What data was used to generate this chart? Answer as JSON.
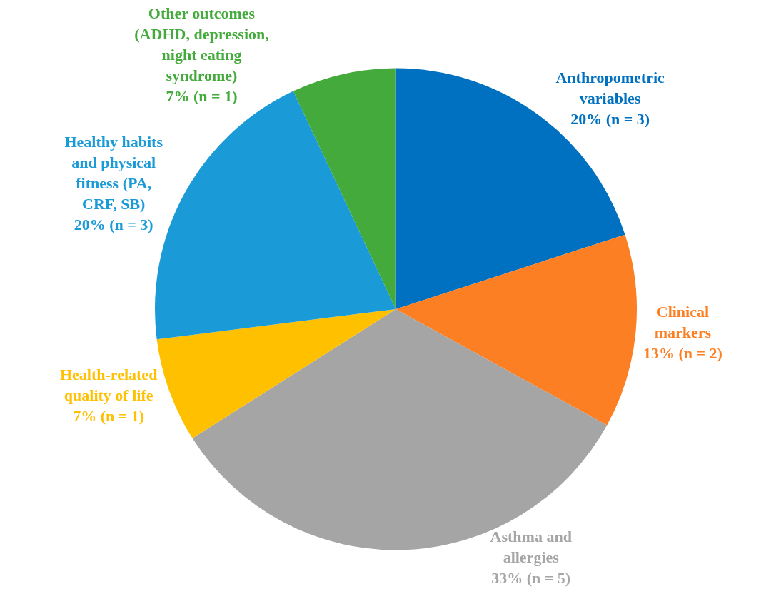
{
  "chart_data": {
    "type": "pie",
    "categories": [
      "Anthropometric\nvariables",
      "Clinical\nmarkers",
      "Asthma and\nallergies",
      "Health-related\nquality of life",
      "Healthy habits\nand physical\nfitness (PA,\nCRF, SB)",
      "Other outcomes\n(ADHD, depression,\nnight eating\nsyndrome)"
    ],
    "values": [
      20,
      13,
      33,
      7,
      20,
      7
    ],
    "value_labels": [
      "20% (n = 3)",
      "13% (n = 2)",
      "33% (n = 5)",
      "7% (n = 1)",
      "20% (n = 3)",
      "7% (n = 1)"
    ],
    "colors": [
      "#0070c0",
      "#fd7f23",
      "#a5a5a5",
      "#ffc000",
      "#1a9ad6",
      "#43aa3b"
    ],
    "legend": false
  }
}
